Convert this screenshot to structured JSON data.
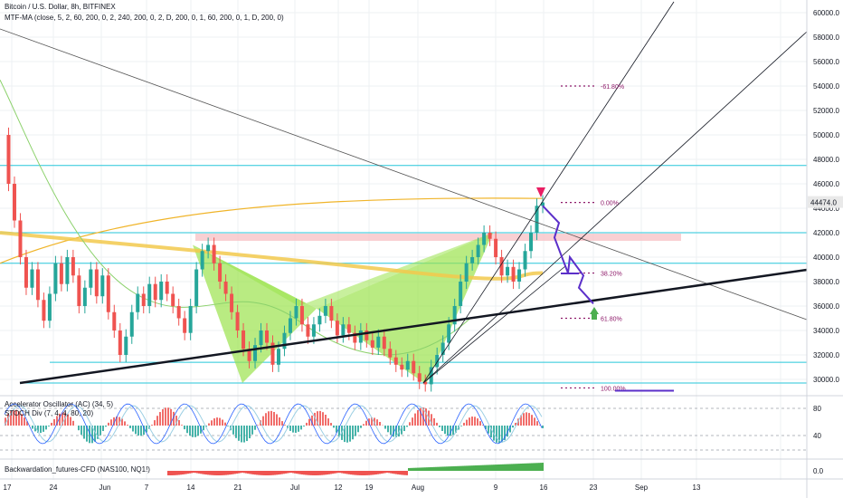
{
  "header": {
    "symbol": "Bitcoin / U.S. Dollar, 8h, BITFINEX",
    "indicator": "MTF-MA (close, 5, 2, 60, 200, 0, 2, 240, 200, 0, 2, D, 200, 0, 1, 60, 200, 0, 1, D, 200, 0)"
  },
  "panels": {
    "ac_label": "Accelerator Oscillator (AC) (34, 5)",
    "stoch_label": "STOCH Div (7, 4, 4, 80, 20)",
    "backwardation_label": "Backwardation_futures-CFD (NAS100, NQ1!)"
  },
  "price_axis": {
    "ticks": [
      "60000.0",
      "58000.0",
      "56000.0",
      "54000.0",
      "52000.0",
      "50000.0",
      "48000.0",
      "46000.0",
      "44000.0",
      "42000.0",
      "40000.0",
      "38000.0",
      "36000.0",
      "34000.0",
      "32000.0",
      "30000.0"
    ],
    "current_price": "44474.0"
  },
  "osc_axis": {
    "ticks": [
      "80",
      "40"
    ]
  },
  "bw_axis": {
    "ticks": [
      "0.0"
    ]
  },
  "time_axis": {
    "ticks": [
      "17",
      "24",
      "Jun",
      "7",
      "14",
      "21",
      "Jul",
      "12",
      "19",
      "Aug",
      "9",
      "16",
      "23",
      "Sep",
      "13"
    ]
  },
  "fib_levels": [
    {
      "label": "-61.80%",
      "price": 54000
    },
    {
      "label": "0.00%",
      "price": 44474
    },
    {
      "label": "38.20%",
      "price": 38700
    },
    {
      "label": "61.80%",
      "price": 35000
    },
    {
      "label": "100.00%",
      "price": 29300
    }
  ],
  "chart_data": {
    "type": "line",
    "series": [
      {
        "values": [
          50000,
          46000,
          43000,
          40000,
          37500,
          39000,
          36500,
          34800,
          37000,
          39500,
          37800,
          40000,
          38500,
          36000,
          37500,
          39000,
          36800,
          38500,
          35500,
          34000,
          32000,
          33500,
          35500,
          37000,
          36000,
          37800,
          36500,
          38000,
          37000,
          36000,
          35000,
          33800,
          36000,
          39000,
          40500,
          41000,
          39500,
          38000,
          37000,
          35500,
          34000,
          32500,
          31500,
          32800,
          34000,
          33000,
          31200,
          32500,
          33800,
          35000,
          36000,
          34500,
          33500,
          34500,
          35200,
          36000,
          34800,
          33600,
          34500,
          33800,
          33000,
          34000,
          33200,
          32600,
          33500,
          32500,
          31800,
          31200,
          30800,
          31500,
          30500,
          29800,
          29600,
          31000,
          32000,
          33000,
          34500,
          36000,
          38000,
          39500,
          40000,
          41000,
          42000,
          41500,
          40000,
          38500,
          39200,
          38000,
          39000,
          40500,
          42000,
          44200,
          44474
        ]
      }
    ],
    "horizontal_levels": [
      47500,
      42000,
      39500,
      31400,
      29700
    ],
    "ylim": [
      29000,
      61000
    ]
  },
  "colors": {
    "up": "#26a69a",
    "down": "#ef5350",
    "level": "#26c6da",
    "harmonic": "#9be34d",
    "ma": "#f2c94c",
    "projection": "#5b2fc9",
    "trend": "#131722",
    "fib": "#8e1a6a",
    "zone": "#f8c4c8",
    "marker_down": "#e91e63",
    "marker_up": "#4caf50",
    "stoch_k": "#2962ff",
    "stoch_d": "#9ccfe3"
  }
}
